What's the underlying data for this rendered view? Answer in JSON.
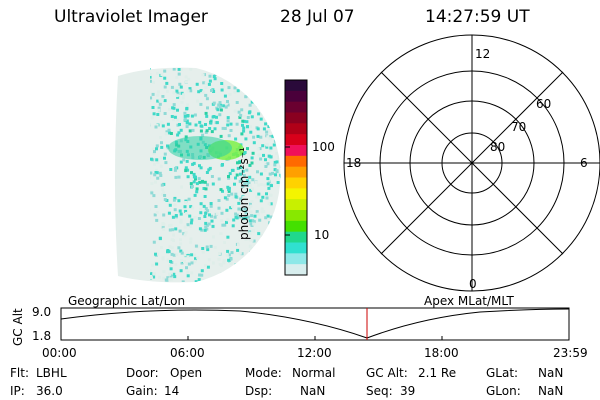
{
  "header": {
    "instrument": "Ultraviolet Imager",
    "date": "28 Jul 07",
    "time": "14:27:59 UT"
  },
  "image_panel": {
    "description_colors": [
      "#dfeee9",
      "#8fdad6",
      "#3fd9c8",
      "#2bd0a4",
      "#7cf048"
    ]
  },
  "colorbar": {
    "unit_label": "photon cm⁻²s⁻¹",
    "ticks": [
      "100",
      "10"
    ],
    "colors": [
      "#2a0a3a",
      "#4a003a",
      "#6a0030",
      "#8a0020",
      "#b00018",
      "#d8001a",
      "#f0105a",
      "#ff6a00",
      "#ffa000",
      "#ffd200",
      "#f4f400",
      "#c8f000",
      "#88e800",
      "#44e000",
      "#20d88c",
      "#30e0d0",
      "#8ee8e8",
      "#d8eeee"
    ]
  },
  "polar_plot": {
    "mlt_labels": {
      "top": "12",
      "left": "18",
      "right": "6",
      "bottom": "0"
    },
    "lat_labels": [
      "60",
      "70",
      "80"
    ]
  },
  "timeline": {
    "ylabel": "GC Alt",
    "yticks": [
      "9.0",
      "1.8"
    ],
    "left_caption": "Geographic Lat/Lon",
    "right_caption": "Apex MLat/MLT",
    "xticks": [
      "00:00",
      "06:00",
      "12:00",
      "18:00",
      "23:59"
    ]
  },
  "info": {
    "row1": [
      {
        "label": "Flt:",
        "value": "LBHL"
      },
      {
        "label": "Door:",
        "value": "Open"
      },
      {
        "label": "Mode:",
        "value": "Normal"
      },
      {
        "label": "GC Alt:",
        "value": "2.1 Re"
      },
      {
        "label": "GLat:",
        "value": "NaN"
      }
    ],
    "row2": [
      {
        "label": "IP:",
        "value": "36.0"
      },
      {
        "label": "Gain:",
        "value": "14"
      },
      {
        "label": "Dsp:",
        "value": "NaN"
      },
      {
        "label": "Seq:",
        "value": "39"
      },
      {
        "label": "GLon:",
        "value": "NaN"
      }
    ]
  }
}
